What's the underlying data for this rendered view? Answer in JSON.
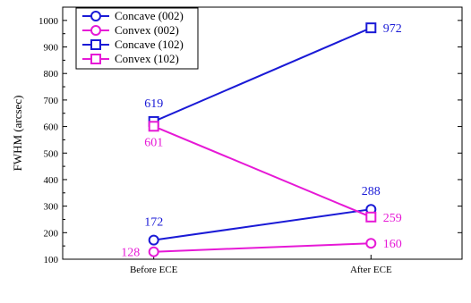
{
  "chart_data": {
    "type": "line",
    "title": "",
    "xlabel": "",
    "ylabel": "FWHM (arcsec)",
    "categories": [
      "Before ECE",
      "After ECE"
    ],
    "ylim": [
      100,
      1050
    ],
    "yticks": [
      "100",
      "200",
      "300",
      "400",
      "500",
      "600",
      "700",
      "800",
      "900",
      "1000"
    ],
    "grid": false,
    "legend_position": "top-left",
    "series": [
      {
        "name": "Concave (002)",
        "values": [
          172,
          288
        ],
        "color": "#1a1ad6",
        "marker": "circle",
        "labels": [
          "172",
          "288"
        ]
      },
      {
        "name": "Convex (002)",
        "values": [
          128,
          160
        ],
        "color": "#e619d6",
        "marker": "circle",
        "labels": [
          "128",
          "160"
        ]
      },
      {
        "name": "Concave (102)",
        "values": [
          619,
          972
        ],
        "color": "#1a1ad6",
        "marker": "square",
        "labels": [
          "619",
          "972"
        ]
      },
      {
        "name": "Convex (102)",
        "values": [
          601,
          259
        ],
        "color": "#e619d6",
        "marker": "square",
        "labels": [
          "601",
          "259"
        ]
      }
    ]
  }
}
